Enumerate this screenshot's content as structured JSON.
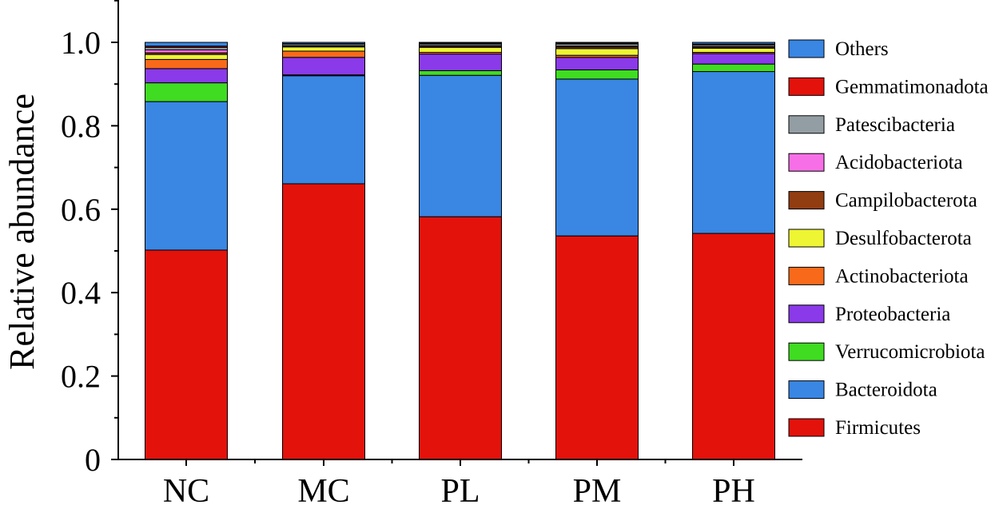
{
  "chart_data": {
    "type": "bar",
    "stacked": true,
    "title": "",
    "xlabel": "",
    "ylabel": "Relative abundance",
    "ylim": [
      0,
      1.0
    ],
    "yticks": [
      0,
      0.2,
      0.4,
      0.6,
      0.8,
      1.0
    ],
    "ytick_labels": [
      "0",
      "0.2",
      "0.4",
      "0.6",
      "0.8",
      "1.0"
    ],
    "grid": false,
    "legend_position": "right",
    "categories": [
      "NC",
      "MC",
      "PL",
      "PM",
      "PH"
    ],
    "series": [
      {
        "name": "Firmicutes",
        "color": "#e3120b",
        "values": [
          0.502,
          0.661,
          0.582,
          0.536,
          0.542
        ]
      },
      {
        "name": "Bacteroidota",
        "color": "#3986e3",
        "values": [
          0.356,
          0.259,
          0.339,
          0.376,
          0.388
        ]
      },
      {
        "name": "Verrucomicrobiota",
        "color": "#3fdc21",
        "values": [
          0.045,
          0.002,
          0.011,
          0.022,
          0.018
        ]
      },
      {
        "name": "Proteobacteria",
        "color": "#8a3ae8",
        "values": [
          0.034,
          0.042,
          0.04,
          0.03,
          0.025
        ]
      },
      {
        "name": "Actinobacteriota",
        "color": "#f86a1a",
        "values": [
          0.022,
          0.015,
          0.004,
          0.005,
          0.003
        ]
      },
      {
        "name": "Desulfobacterota",
        "color": "#eef532",
        "values": [
          0.012,
          0.01,
          0.012,
          0.016,
          0.01
        ]
      },
      {
        "name": "Campilobacterota",
        "color": "#923c11",
        "values": [
          0.004,
          0.002,
          0.003,
          0.004,
          0.003
        ]
      },
      {
        "name": "Acidobacteriota",
        "color": "#f66fe6",
        "values": [
          0.007,
          0.001,
          0.001,
          0.002,
          0.001
        ]
      },
      {
        "name": "Patescibacteria",
        "color": "#939ea4",
        "values": [
          0.006,
          0.004,
          0.004,
          0.005,
          0.004
        ]
      },
      {
        "name": "Gemmatimonadota",
        "color": "#e3120b",
        "values": [
          0.003,
          0.001,
          0.002,
          0.002,
          0.002
        ]
      },
      {
        "name": "Others",
        "color": "#3986e3",
        "values": [
          0.009,
          0.003,
          0.002,
          0.002,
          0.004
        ]
      }
    ]
  }
}
